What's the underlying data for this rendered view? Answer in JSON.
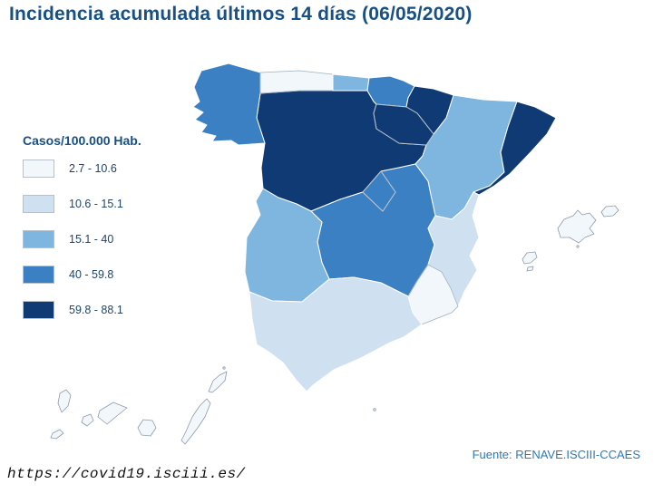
{
  "title": "Incidencia acumulada últimos 14 días (06/05/2020)",
  "legend": {
    "title": "Casos/100.000 Hab.",
    "classes": [
      {
        "label": "2.7 - 10.6",
        "color": "#f2f7fc"
      },
      {
        "label": "10.6 - 15.1",
        "color": "#cfe0f1"
      },
      {
        "label": "15.1 - 40",
        "color": "#7eb6df"
      },
      {
        "label": "40 - 59.8",
        "color": "#3a80c2"
      },
      {
        "label": "59.8 - 88.1",
        "color": "#103a74"
      }
    ]
  },
  "map": {
    "regions": [
      {
        "id": "galicia",
        "name": "Galicia",
        "range": "40 - 59.8",
        "class_index": 3
      },
      {
        "id": "asturias",
        "name": "Asturias",
        "range": "2.7 - 10.6",
        "class_index": 0
      },
      {
        "id": "cantabria",
        "name": "Cantabria",
        "range": "15.1 - 40",
        "class_index": 2
      },
      {
        "id": "pais-vasco",
        "name": "País Vasco",
        "range": "40 - 59.8",
        "class_index": 3
      },
      {
        "id": "navarra",
        "name": "Navarra",
        "range": "59.8 - 88.1",
        "class_index": 4
      },
      {
        "id": "la-rioja",
        "name": "La Rioja",
        "range": "59.8 - 88.1",
        "class_index": 4
      },
      {
        "id": "aragon",
        "name": "Aragón",
        "range": "15.1 - 40",
        "class_index": 2
      },
      {
        "id": "cataluna",
        "name": "Cataluña",
        "range": "59.8 - 88.1",
        "class_index": 4
      },
      {
        "id": "castilla-y-leon",
        "name": "Castilla y León",
        "range": "59.8 - 88.1",
        "class_index": 4
      },
      {
        "id": "madrid",
        "name": "Comunidad de Madrid",
        "range": "40 - 59.8",
        "class_index": 3
      },
      {
        "id": "castilla-la-mancha",
        "name": "Castilla-La Mancha",
        "range": "40 - 59.8",
        "class_index": 3
      },
      {
        "id": "extremadura",
        "name": "Extremadura",
        "range": "15.1 - 40",
        "class_index": 2
      },
      {
        "id": "comunidad-valenciana",
        "name": "Comunidad Valenciana",
        "range": "10.6 - 15.1",
        "class_index": 1
      },
      {
        "id": "murcia",
        "name": "Región de Murcia",
        "range": "2.7 - 10.6",
        "class_index": 0
      },
      {
        "id": "andalucia",
        "name": "Andalucía",
        "range": "10.6 - 15.1",
        "class_index": 1
      },
      {
        "id": "baleares",
        "name": "Islas Baleares",
        "range": "2.7 - 10.6",
        "class_index": 0
      },
      {
        "id": "canarias",
        "name": "Islas Canarias",
        "range": "2.7 - 10.6",
        "class_index": 0
      },
      {
        "id": "melilla",
        "name": "Melilla",
        "range": "2.7 - 10.6",
        "class_index": 0
      }
    ]
  },
  "source": "Fuente: RENAVE.ISCIII-CCAES",
  "url": "https://covid19.isciii.es/"
}
